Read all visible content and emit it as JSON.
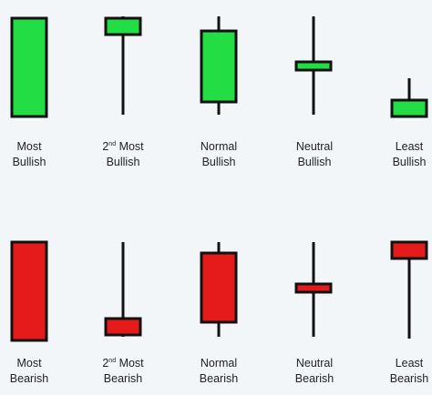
{
  "colors": {
    "bullish": "#22dd44",
    "bearish": "#e51b1b",
    "outline": "#111111",
    "background": "#f3f6f9"
  },
  "rows": [
    {
      "sentiment": "bullish",
      "candles": [
        {
          "rank_line": "Most",
          "rank_sup": "",
          "sentiment_label": "Bullish"
        },
        {
          "rank_line": "2",
          "rank_sup": "nd",
          "rank_rest": " Most",
          "sentiment_label": "Bullish"
        },
        {
          "rank_line": "Normal",
          "rank_sup": "",
          "sentiment_label": "Bullish"
        },
        {
          "rank_line": "Neutral",
          "rank_sup": "",
          "sentiment_label": "Bullish"
        },
        {
          "rank_line": "Least",
          "rank_sup": "",
          "sentiment_label": "Bullish"
        }
      ]
    },
    {
      "sentiment": "bearish",
      "candles": [
        {
          "rank_line": "Most",
          "rank_sup": "",
          "sentiment_label": "Bearish"
        },
        {
          "rank_line": "2",
          "rank_sup": "nd",
          "rank_rest": " Most",
          "sentiment_label": "Bearish"
        },
        {
          "rank_line": "Normal",
          "rank_sup": "",
          "sentiment_label": "Bearish"
        },
        {
          "rank_line": "Neutral",
          "rank_sup": "",
          "sentiment_label": "Bearish"
        },
        {
          "rank_line": "Least",
          "rank_sup": "",
          "sentiment_label": "Bearish"
        }
      ]
    }
  ]
}
